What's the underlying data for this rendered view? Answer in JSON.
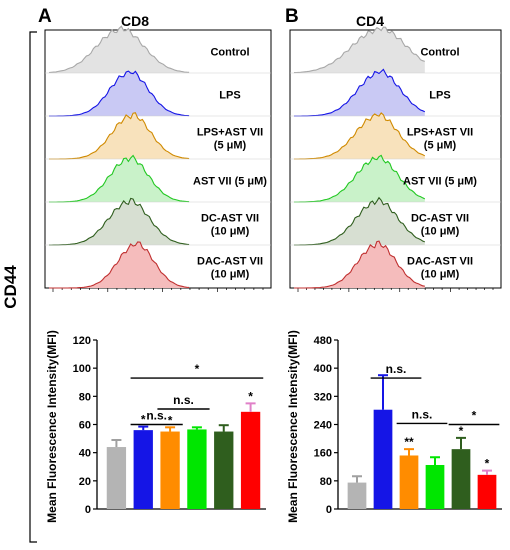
{
  "figure": {
    "side_label": "CD44"
  },
  "colors": {
    "control": "#a8a8a8",
    "lps": "#1515e6",
    "lps_ast": "#ff8c00",
    "ast": "#00e600",
    "dc_ast": "#2f5e1e",
    "dac_ast": "#ff0000",
    "error": "#e080c8"
  },
  "panels": [
    {
      "letter": "A",
      "title": "CD8",
      "rows": [
        {
          "label": "Control",
          "label2": "",
          "color": "#a8a8a8",
          "fill": "#e3e3e3",
          "peak": 0.33,
          "width": 0.105
        },
        {
          "label": "LPS",
          "label2": "",
          "color": "#1515e6",
          "fill": "#c9c9f4",
          "peak": 0.37,
          "width": 0.085
        },
        {
          "label": "LPS+AST VII",
          "label2": "(5 μM)",
          "color": "#d08a00",
          "fill": "#f8e2bc",
          "peak": 0.38,
          "width": 0.085
        },
        {
          "label": "AST VII (5 μM)",
          "label2": "",
          "color": "#22c822",
          "fill": "#c9f2c9",
          "peak": 0.37,
          "width": 0.085
        },
        {
          "label": "DC-AST VII",
          "label2": "(10 μM)",
          "color": "#2f5e1e",
          "fill": "#d7dfd2",
          "peak": 0.37,
          "width": 0.09
        },
        {
          "label": "DAC-AST VII",
          "label2": "(10 μM)",
          "color": "#c03030",
          "fill": "#f5bcbc",
          "peak": 0.4,
          "width": 0.08
        }
      ]
    },
    {
      "letter": "B",
      "title": "CD4",
      "rows": [
        {
          "label": "Control",
          "label2": "",
          "color": "#a8a8a8",
          "fill": "#e3e3e3",
          "peak": 0.42,
          "width": 0.13
        },
        {
          "label": "LPS",
          "label2": "",
          "color": "#1515e6",
          "fill": "#c9c9f4",
          "peak": 0.42,
          "width": 0.1
        },
        {
          "label": "LPS+AST VII",
          "label2": "(5 μM)",
          "color": "#d08a00",
          "fill": "#f8e2bc",
          "peak": 0.41,
          "width": 0.1
        },
        {
          "label": "AST VII (5 μM)",
          "label2": "",
          "color": "#22c822",
          "fill": "#c9f2c9",
          "peak": 0.41,
          "width": 0.1
        },
        {
          "label": "DC-AST VII",
          "label2": "(10 μM)",
          "color": "#2f5e1e",
          "fill": "#d7dfd2",
          "peak": 0.41,
          "width": 0.1
        },
        {
          "label": "DAC-AST VII",
          "label2": "(10 μM)",
          "color": "#c03030",
          "fill": "#f5bcbc",
          "peak": 0.41,
          "width": 0.09
        }
      ]
    }
  ],
  "chart_data": [
    {
      "type": "bar",
      "ylabel": "Mean Fluorescence Intensity(MFI)",
      "ylim": [
        0,
        120
      ],
      "yticks": [
        0,
        20,
        40,
        60,
        80,
        100,
        120
      ],
      "values": [
        44,
        56,
        55,
        56.5,
        55,
        69
      ],
      "errors": [
        5,
        2.5,
        3,
        1.5,
        4.5,
        6
      ],
      "colors": [
        "#b4b4b4",
        "#1515e6",
        "#ff8c00",
        "#00e600",
        "#2f5e1e",
        "#ff0000"
      ],
      "stars": [
        "",
        "*",
        "*",
        "",
        "",
        "*"
      ],
      "brackets": [
        {
          "from": 1,
          "to": 5,
          "y": 93,
          "label": "*"
        },
        {
          "from": 2,
          "to": 3,
          "y": 71,
          "label": "n.s."
        },
        {
          "from": 1,
          "to": 2,
          "y": 60,
          "label": "n.s."
        }
      ]
    },
    {
      "type": "bar",
      "ylabel": "Mean Fluorescence Intensity(MFI)",
      "ylim": [
        0,
        480
      ],
      "yticks": [
        0,
        80,
        160,
        240,
        320,
        400,
        480
      ],
      "values": [
        75,
        282,
        152,
        125,
        170,
        97
      ],
      "errors": [
        18,
        98,
        18,
        22,
        32,
        12
      ],
      "colors": [
        "#b4b4b4",
        "#1515e6",
        "#ff8c00",
        "#00e600",
        "#2f5e1e",
        "#ff0000"
      ],
      "stars": [
        "",
        "",
        "**",
        "",
        "*",
        "*"
      ],
      "brackets": [
        {
          "from": 1,
          "to": 2,
          "y": 372,
          "label": "n.s."
        },
        {
          "from": 2,
          "to": 3,
          "y": 243,
          "label": "n.s."
        },
        {
          "from": 4,
          "to": 5,
          "y": 240,
          "label": "*"
        }
      ]
    }
  ]
}
